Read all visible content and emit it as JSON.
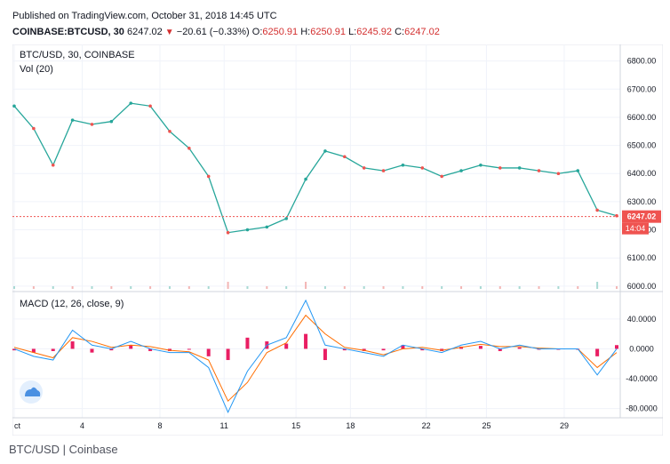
{
  "header": {
    "published": "Published on TradingView.com, October 31, 2018 14:45 UTC",
    "symbol": "COINBASE:BTCUSD, 30",
    "last": "6247.02",
    "change": "−20.61 (−0.33%)",
    "o_label": "O:",
    "o": "6250.91",
    "h_label": "H:",
    "h": "6250.91",
    "l_label": "L:",
    "l": "6245.92",
    "c_label": "C:",
    "c": "6247.02"
  },
  "price_pane": {
    "title": "BTC/USD, 30, COINBASE",
    "vol_label": "Vol (20)",
    "last_price_label": "6247.02",
    "countdown_label": "14:04"
  },
  "macd_pane": {
    "title": "MACD (12, 26, close, 9)"
  },
  "footer": {
    "source": "BTC/USD | Coinbase"
  },
  "colors": {
    "up": "#26a69a",
    "down": "#ef5350",
    "macd": "#2196f3",
    "signal": "#ff6d00",
    "hist": "#e91e63",
    "last_price_tag": "#ef5350"
  },
  "chart_data": [
    {
      "type": "line",
      "title": "BTC/USD, 30, COINBASE",
      "x_ticks": [
        "ct",
        "4",
        "8",
        "11",
        "15",
        "18",
        "22",
        "25",
        "29"
      ],
      "ylim": [
        5990,
        6840
      ],
      "y_ticks": [
        "6000.00",
        "6100.00",
        "6200.00",
        "6300.00",
        "6400.00",
        "6500.00",
        "6600.00",
        "6700.00",
        "6800.00"
      ],
      "series": [
        {
          "x": [
            0,
            1,
            2,
            3,
            4,
            5,
            6,
            7,
            8,
            9,
            10,
            11,
            12,
            13,
            14,
            15,
            16,
            17,
            18,
            19,
            20,
            21,
            22,
            23,
            24,
            25,
            26,
            27,
            28,
            29,
            30,
            31
          ],
          "values": [
            6640,
            6560,
            6430,
            6590,
            6575,
            6585,
            6650,
            6640,
            6550,
            6490,
            6390,
            6190,
            6200,
            6210,
            6240,
            6380,
            6480,
            6460,
            6420,
            6410,
            6430,
            6420,
            6390,
            6410,
            6430,
            6420,
            6420,
            6410,
            6400,
            6410,
            6270,
            6250
          ]
        }
      ],
      "last_price": 6247.02
    },
    {
      "type": "line",
      "title": "MACD (12, 26, close, 9)",
      "ylim": [
        -90,
        72
      ],
      "y_ticks": [
        "40.0000",
        "0.0000",
        "-40.0000",
        "-80.0000"
      ],
      "series": [
        {
          "name": "MACD",
          "x": [
            0,
            1,
            2,
            3,
            4,
            5,
            6,
            7,
            8,
            9,
            10,
            11,
            12,
            13,
            14,
            15,
            16,
            17,
            18,
            19,
            20,
            21,
            22,
            23,
            24,
            25,
            26,
            27,
            28,
            29,
            30,
            31
          ],
          "values": [
            0,
            -10,
            -15,
            25,
            5,
            0,
            10,
            0,
            -5,
            -5,
            -25,
            -85,
            -30,
            5,
            15,
            65,
            5,
            0,
            -5,
            -10,
            5,
            0,
            -5,
            5,
            10,
            0,
            5,
            0,
            0,
            0,
            -35,
            0
          ]
        },
        {
          "name": "Signal",
          "x": [
            0,
            1,
            2,
            3,
            4,
            5,
            6,
            7,
            8,
            9,
            10,
            11,
            12,
            13,
            14,
            15,
            16,
            17,
            18,
            19,
            20,
            21,
            22,
            23,
            24,
            25,
            26,
            27,
            28,
            29,
            30,
            31
          ],
          "values": [
            2,
            -5,
            -12,
            15,
            10,
            2,
            5,
            3,
            -2,
            -4,
            -15,
            -70,
            -45,
            -5,
            8,
            45,
            20,
            2,
            -2,
            -8,
            0,
            2,
            -2,
            2,
            6,
            3,
            3,
            1,
            0,
            0,
            -25,
            -5
          ]
        }
      ]
    }
  ]
}
